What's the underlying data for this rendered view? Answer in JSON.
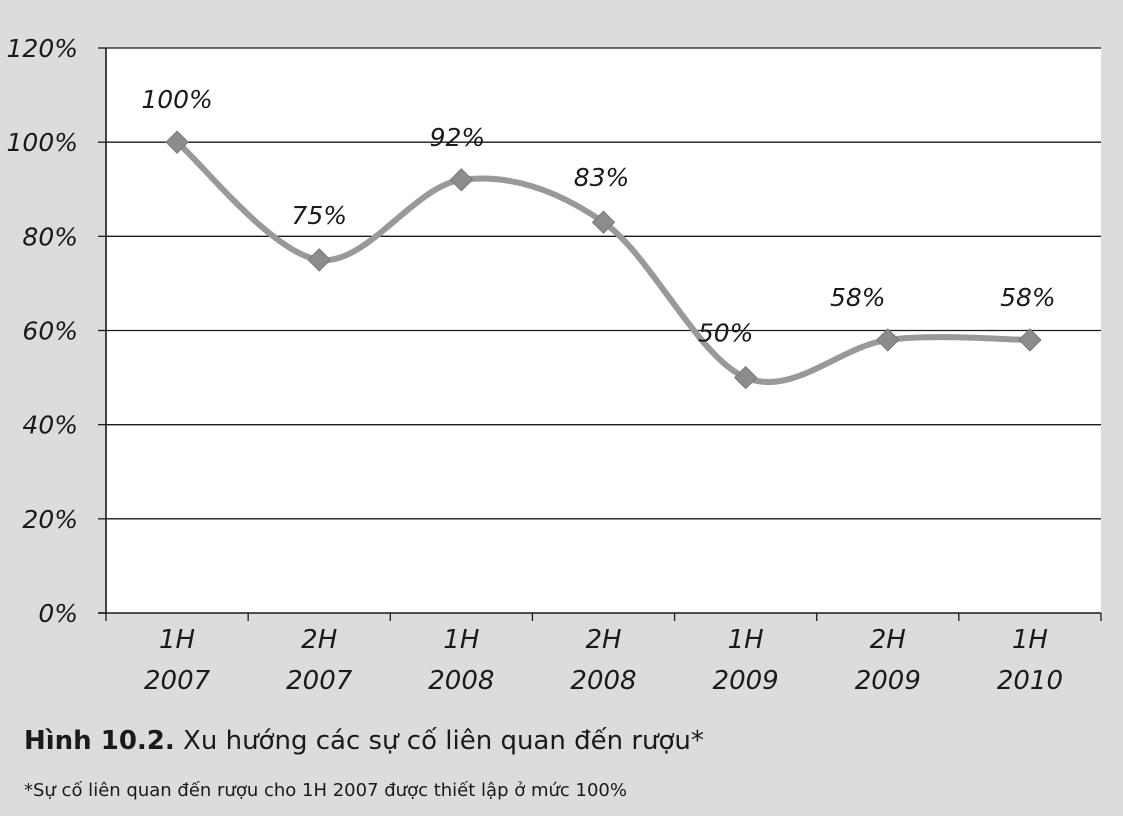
{
  "chart_data": {
    "type": "line",
    "categories": [
      [
        "1H",
        "2007"
      ],
      [
        "2H",
        "2007"
      ],
      [
        "1H",
        "2008"
      ],
      [
        "2H",
        "2008"
      ],
      [
        "1H",
        "2009"
      ],
      [
        "2H",
        "2009"
      ],
      [
        "1H",
        "2010"
      ]
    ],
    "values": [
      100,
      75,
      92,
      83,
      50,
      58,
      58
    ],
    "data_labels": [
      "100%",
      "75%",
      "92%",
      "83%",
      "50%",
      "58%",
      "58%"
    ],
    "ylim": [
      0,
      120
    ],
    "yticks": [
      0,
      20,
      40,
      60,
      80,
      100,
      120
    ],
    "ytick_labels": [
      "0%",
      "20%",
      "40%",
      "60%",
      "80%",
      "100%",
      "120%"
    ],
    "grid": true,
    "legend": "none",
    "line_color": "#999999",
    "marker_color": "#8c8c8c",
    "plot_background": "#ffffff",
    "page_background": "#dcdcdc"
  },
  "caption": {
    "label": "Hình 10.2.",
    "text": " Xu hướng các sự cố liên quan đến rượu*"
  },
  "footnote": "*Sự cố liên quan đến rượu cho 1H 2007 được thiết lập ở mức 100%"
}
